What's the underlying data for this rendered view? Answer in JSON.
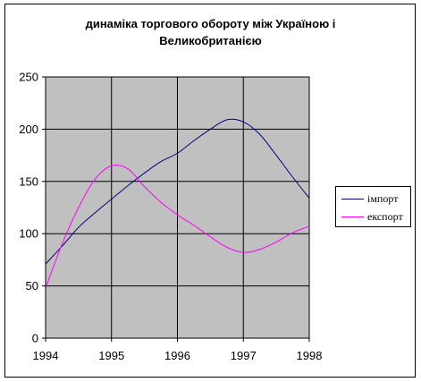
{
  "chart_data": {
    "type": "line",
    "title": "динаміка торгового обороту між Україною і\nВеликобританією",
    "xlabel": "",
    "ylabel": "",
    "xlim": [
      1994,
      1998
    ],
    "ylim": [
      0,
      250
    ],
    "x_ticks": [
      "1994",
      "1995",
      "1996",
      "1997",
      "1998"
    ],
    "y_ticks": [
      "0",
      "50",
      "100",
      "150",
      "200",
      "250"
    ],
    "grid": true,
    "legend_position": "right",
    "plot_background": "#c0c0c0",
    "series": [
      {
        "name": "імпорт",
        "color": "#000080",
        "x": [
          1994,
          1994.25,
          1994.5,
          1994.75,
          1995,
          1995.25,
          1995.5,
          1995.75,
          1996,
          1996.25,
          1996.5,
          1996.75,
          1997,
          1997.25,
          1997.5,
          1997.75,
          1998
        ],
        "y": [
          71,
          88,
          106,
          120,
          133,
          146,
          158,
          169,
          177,
          189,
          200,
          209,
          207,
          195,
          175,
          154,
          134
        ]
      },
      {
        "name": "експорт",
        "color": "#ff00ff",
        "x": [
          1994,
          1994.25,
          1994.5,
          1994.75,
          1995,
          1995.25,
          1995.5,
          1995.75,
          1996,
          1996.25,
          1996.5,
          1996.75,
          1997,
          1997.25,
          1997.5,
          1997.75,
          1998
        ],
        "y": [
          48,
          90,
          125,
          152,
          165,
          162,
          145,
          130,
          118,
          108,
          97,
          87,
          82,
          85,
          92,
          101,
          107
        ]
      }
    ]
  }
}
